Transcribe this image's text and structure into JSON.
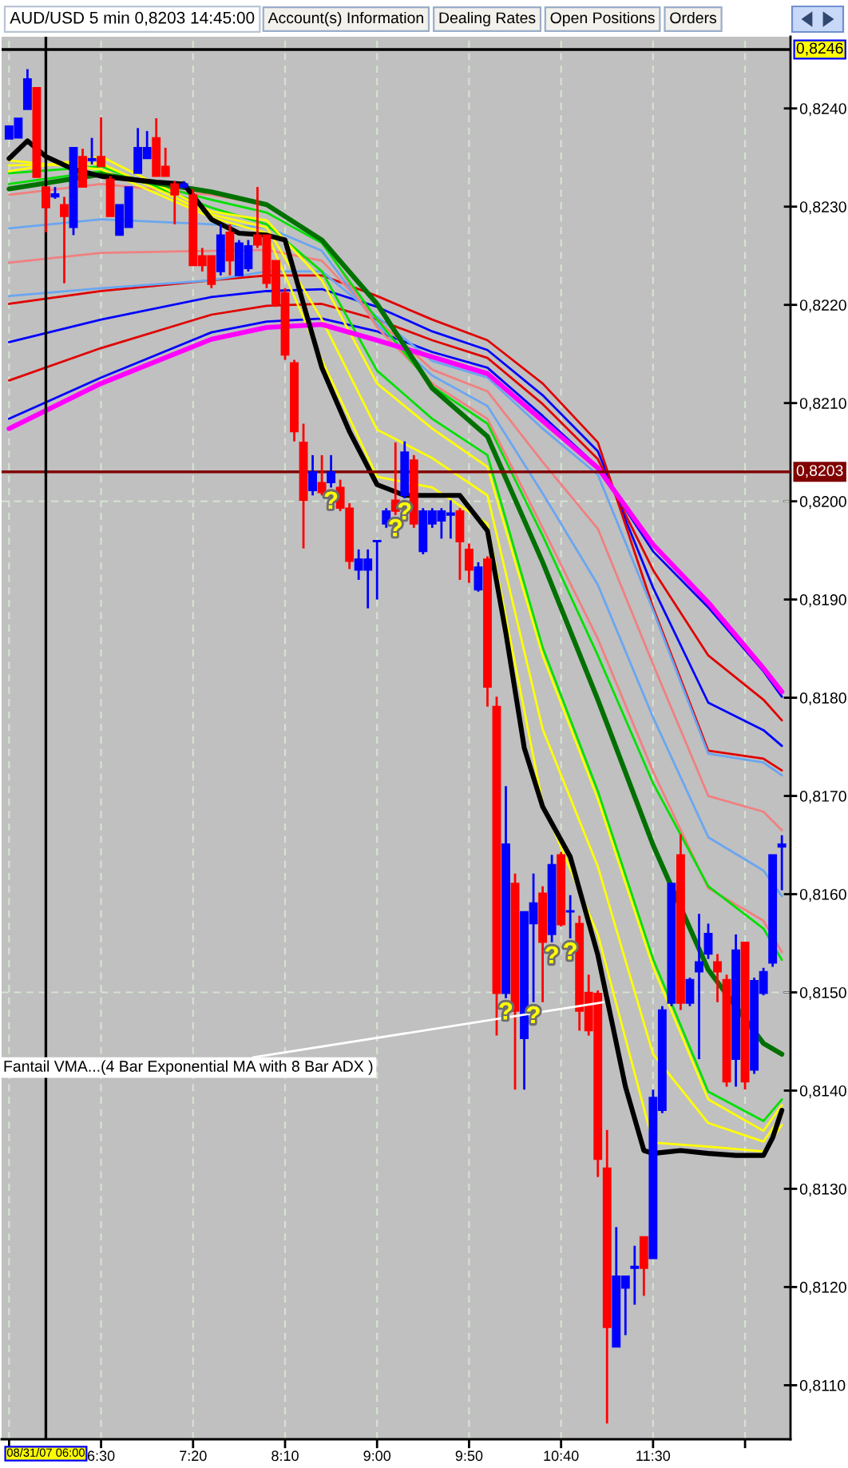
{
  "chart_data": {
    "type": "candlestick",
    "title": "AUD/USD 5 min 0,8203 14:45:00",
    "x": [
      5.6667,
      5.75,
      5.8333,
      5.9167,
      6.0,
      6.0833,
      6.1667,
      6.25,
      6.3333,
      6.4167,
      6.5,
      6.5833,
      6.6667,
      6.75,
      6.8333,
      6.9167,
      7.0,
      7.0833,
      7.1667,
      7.25,
      7.3333,
      7.4167,
      7.5,
      7.5833,
      7.6667,
      7.75,
      7.8333,
      7.9167,
      8.0,
      8.0833,
      8.1667,
      8.25,
      8.3333,
      8.4167,
      8.5,
      8.5833,
      8.6667,
      8.75,
      8.8333,
      8.9167,
      9.0,
      9.0833,
      9.1667,
      9.25,
      9.3333,
      9.4167,
      9.5,
      9.5833,
      9.6667,
      9.75,
      9.8333,
      9.9167,
      10.0,
      10.0833,
      10.1667,
      10.25,
      10.3333,
      10.4167,
      10.5,
      10.5833,
      10.6667,
      10.75,
      10.8333,
      10.9167,
      11.0,
      11.0833,
      11.1667,
      11.25,
      11.3333,
      11.4167,
      11.5,
      11.5833,
      11.6667,
      11.75,
      11.8333,
      11.9167,
      12.0,
      12.0833,
      12.1667,
      12.25,
      12.3333,
      12.4167,
      12.5,
      12.5833,
      12.6667
    ],
    "ohlc": [
      [
        0.82369,
        0.82382,
        0.82369,
        0.82382
      ],
      [
        0.8237,
        0.8239,
        0.8237,
        0.8239
      ],
      [
        0.82399,
        0.8244,
        0.82399,
        0.8243
      ],
      [
        0.82421,
        0.82421,
        0.8233,
        0.8233
      ],
      [
        0.8232,
        0.8232,
        0.82274,
        0.82299
      ],
      [
        0.8231,
        0.8232,
        0.82308,
        0.82313
      ],
      [
        0.82302,
        0.8231,
        0.82222,
        0.8229
      ],
      [
        0.82279,
        0.8236,
        0.82271,
        0.8236
      ],
      [
        0.82351,
        0.82359,
        0.8232,
        0.8232
      ],
      [
        0.82347,
        0.8237,
        0.82343,
        0.82349
      ],
      [
        0.82351,
        0.82391,
        0.82341,
        0.82341
      ],
      [
        0.82328,
        0.82331,
        0.8229,
        0.8229
      ],
      [
        0.82271,
        0.82302,
        0.82271,
        0.82302
      ],
      [
        0.82279,
        0.8232,
        0.82279,
        0.8232
      ],
      [
        0.82334,
        0.8238,
        0.82334,
        0.8236
      ],
      [
        0.82349,
        0.82377,
        0.82349,
        0.8236
      ],
      [
        0.8237,
        0.8239,
        0.82331,
        0.82331
      ],
      [
        0.82341,
        0.8236,
        0.82331,
        0.82331
      ],
      [
        0.82323,
        0.82326,
        0.82282,
        0.82312
      ],
      [
        0.8232,
        0.82326,
        0.82318,
        0.82323
      ],
      [
        0.82312,
        0.82318,
        0.8224,
        0.8224
      ],
      [
        0.8225,
        0.82258,
        0.82234,
        0.8224
      ],
      [
        0.8225,
        0.8225,
        0.82217,
        0.82221
      ],
      [
        0.82234,
        0.82282,
        0.8223,
        0.82271
      ],
      [
        0.82274,
        0.82282,
        0.8223,
        0.82245
      ],
      [
        0.8223,
        0.82266,
        0.82229,
        0.82263
      ],
      [
        0.82237,
        0.82266,
        0.82234,
        0.8226
      ],
      [
        0.82271,
        0.8232,
        0.82258,
        0.82261
      ],
      [
        0.82271,
        0.82271,
        0.82217,
        0.82222
      ],
      [
        0.82245,
        0.82245,
        0.82198,
        0.82201
      ],
      [
        0.82212,
        0.82217,
        0.82144,
        0.82149
      ],
      [
        0.82141,
        0.82144,
        0.82061,
        0.82071
      ],
      [
        0.8206,
        0.82079,
        0.81952,
        0.82001
      ],
      [
        0.82011,
        0.82047,
        0.82006,
        0.8203
      ],
      [
        0.82019,
        0.82047,
        0.82006,
        0.82009
      ],
      [
        0.82019,
        0.82047,
        0.82014,
        0.8203
      ],
      [
        0.82014,
        0.82022,
        0.8199,
        0.81993
      ],
      [
        0.81993,
        0.81998,
        0.81931,
        0.81939
      ],
      [
        0.8193,
        0.81951,
        0.8192,
        0.81941
      ],
      [
        0.8193,
        0.81951,
        0.81891,
        0.81941
      ],
      [
        0.81959,
        0.8196,
        0.819,
        0.8196
      ],
      [
        0.81977,
        0.81993,
        0.81973,
        0.8199
      ],
      [
        0.82001,
        0.8206,
        0.81986,
        0.8199
      ],
      [
        0.82006,
        0.82061,
        0.82003,
        0.8205
      ],
      [
        0.82042,
        0.82047,
        0.81973,
        0.81977
      ],
      [
        0.81949,
        0.81993,
        0.81946,
        0.8199
      ],
      [
        0.81977,
        0.81993,
        0.81973,
        0.8199
      ],
      [
        0.8198,
        0.81993,
        0.81962,
        0.8199
      ],
      [
        0.81986,
        0.82001,
        0.81962,
        0.81988
      ],
      [
        0.8199,
        0.81993,
        0.8192,
        0.81959
      ],
      [
        0.81951,
        0.81957,
        0.81917,
        0.8193
      ],
      [
        0.8191,
        0.81938,
        0.81908,
        0.81933
      ],
      [
        0.81941,
        0.81944,
        0.81791,
        0.81811
      ],
      [
        0.81791,
        0.81801,
        0.81456,
        0.81499
      ],
      [
        0.81499,
        0.8171,
        0.81494,
        0.81651
      ],
      [
        0.81611,
        0.81621,
        0.81401,
        0.81481
      ],
      [
        0.81453,
        0.81582,
        0.81401,
        0.81582
      ],
      [
        0.8157,
        0.81621,
        0.8149,
        0.81591
      ],
      [
        0.81601,
        0.81608,
        0.8149,
        0.81551
      ],
      [
        0.81559,
        0.8164,
        0.81551,
        0.8163
      ],
      [
        0.8164,
        0.81643,
        0.81567,
        0.81569
      ],
      [
        0.81582,
        0.81599,
        0.81555,
        0.81583
      ],
      [
        0.8157,
        0.81578,
        0.81461,
        0.81481
      ],
      [
        0.815,
        0.81518,
        0.81456,
        0.81461
      ],
      [
        0.81499,
        0.81502,
        0.81312,
        0.8133
      ],
      [
        0.81321,
        0.8136,
        0.81061,
        0.81159
      ],
      [
        0.81139,
        0.81261,
        0.81139,
        0.81211
      ],
      [
        0.81199,
        0.81211,
        0.81151,
        0.81211
      ],
      [
        0.81219,
        0.81242,
        0.81182,
        0.81221
      ],
      [
        0.81251,
        0.81251,
        0.81191,
        0.81219
      ],
      [
        0.81229,
        0.81401,
        0.81229,
        0.81393
      ],
      [
        0.8138,
        0.81486,
        0.81377,
        0.81482
      ],
      [
        0.81489,
        0.81611,
        0.81486,
        0.81611
      ],
      [
        0.8164,
        0.81661,
        0.81482,
        0.81489
      ],
      [
        0.81489,
        0.81515,
        0.81486,
        0.81513
      ],
      [
        0.81521,
        0.8158,
        0.81432,
        0.81531
      ],
      [
        0.81539,
        0.8157,
        0.81534,
        0.8156
      ],
      [
        0.81531,
        0.81539,
        0.8149,
        0.81521
      ],
      [
        0.81513,
        0.81518,
        0.81404,
        0.81409
      ],
      [
        0.81432,
        0.81559,
        0.81404,
        0.81543
      ],
      [
        0.81551,
        0.81551,
        0.81401,
        0.81409
      ],
      [
        0.81421,
        0.81515,
        0.81417,
        0.81512
      ],
      [
        0.81499,
        0.81525,
        0.81497,
        0.81521
      ],
      [
        0.8153,
        0.8164,
        0.81526,
        0.8164
      ],
      [
        0.81648,
        0.8166,
        0.81604,
        0.81651
      ]
    ],
    "colors": [
      "#0000ff",
      "#0000ff",
      "#0000ff",
      "#ff0000",
      "#ff0000",
      "#0000ff",
      "#ff0000",
      "#0000ff",
      "#ff0000",
      "#0000ff",
      "#ff0000",
      "#ff0000",
      "#0000ff",
      "#0000ff",
      "#0000ff",
      "#0000ff",
      "#ff0000",
      "#ff0000",
      "#ff0000",
      "#0000ff",
      "#ff0000",
      "#ff0000",
      "#ff0000",
      "#0000ff",
      "#ff0000",
      "#0000ff",
      "#0000ff",
      "#ff0000",
      "#ff0000",
      "#ff0000",
      "#ff0000",
      "#ff0000",
      "#ff0000",
      "#0000ff",
      "#ff0000",
      "#0000ff",
      "#ff0000",
      "#ff0000",
      "#0000ff",
      "#0000ff",
      "#0000ff",
      "#0000ff",
      "#ff0000",
      "#0000ff",
      "#ff0000",
      "#0000ff",
      "#0000ff",
      "#0000ff",
      "#0000ff",
      "#ff0000",
      "#ff0000",
      "#0000ff",
      "#ff0000",
      "#ff0000",
      "#0000ff",
      "#ff0000",
      "#0000ff",
      "#0000ff",
      "#ff0000",
      "#0000ff",
      "#ff0000",
      "#0000ff",
      "#ff0000",
      "#ff0000",
      "#ff0000",
      "#ff0000",
      "#0000ff",
      "#0000ff",
      "#0000ff",
      "#ff0000",
      "#0000ff",
      "#0000ff",
      "#0000ff",
      "#ff0000",
      "#0000ff",
      "#0000ff",
      "#0000ff",
      "#ff0000",
      "#ff0000",
      "#0000ff",
      "#ff0000",
      "#0000ff",
      "#0000ff",
      "#0000ff",
      "#0000ff"
    ],
    "series": [
      {
        "type": "line",
        "color": "#0000ff",
        "x": [
          5.6667,
          6.5,
          7.5,
          8.0,
          8.5,
          9.0,
          9.5,
          10.0,
          10.5,
          11.0,
          11.5,
          12.0,
          12.5,
          12.6667
        ],
        "values": [
          0.82084,
          0.82126,
          0.82172,
          0.82183,
          0.82186,
          0.82173,
          0.82152,
          0.82136,
          0.82087,
          0.82035,
          0.81949,
          0.81892,
          0.81827,
          0.81801
        ]
      },
      {
        "type": "line",
        "color": "#e00000",
        "x": [
          5.6667,
          6.5,
          7.5,
          8.0,
          8.5,
          9.0,
          9.5,
          10.0,
          10.5,
          11.0,
          11.5,
          12.0,
          12.5,
          12.6667
        ],
        "values": [
          0.82123,
          0.82156,
          0.8219,
          0.82199,
          0.82201,
          0.82185,
          0.82164,
          0.82146,
          0.82099,
          0.82043,
          0.8193,
          0.81843,
          0.81798,
          0.81777
        ]
      },
      {
        "type": "line",
        "color": "#0000ff",
        "x": [
          5.6667,
          6.5,
          7.5,
          8.0,
          8.5,
          9.0,
          9.5,
          10.0,
          10.5,
          11.0,
          11.5,
          12.0,
          12.5,
          12.6667
        ],
        "values": [
          0.82162,
          0.82185,
          0.82208,
          0.82214,
          0.82216,
          0.82198,
          0.82173,
          0.82154,
          0.82108,
          0.82051,
          0.81912,
          0.81795,
          0.81767,
          0.81751
        ]
      },
      {
        "type": "line",
        "color": "#e00000",
        "x": [
          5.6667,
          6.5,
          7.5,
          8.0,
          8.5,
          9.0,
          9.5,
          10.0,
          10.5,
          11.0,
          11.5,
          12.0,
          12.5,
          12.6667
        ],
        "values": [
          0.82201,
          0.82214,
          0.82225,
          0.8223,
          0.8223,
          0.82209,
          0.82185,
          0.82164,
          0.8212,
          0.8206,
          0.81892,
          0.81746,
          0.81738,
          0.81726
        ]
      },
      {
        "type": "line",
        "color": "#6aa6f0",
        "x": [
          5.6667,
          6.5,
          7.5,
          8.0,
          8.5,
          9.0,
          9.5,
          10.0,
          10.5,
          11.0,
          11.5,
          12.0,
          12.5,
          12.6667
        ],
        "values": [
          0.82209,
          0.82217,
          0.82225,
          0.82234,
          0.82234,
          0.82188,
          0.82143,
          0.82126,
          0.82074,
          0.82027,
          0.81889,
          0.81743,
          0.81734,
          0.81721
        ]
      },
      {
        "type": "line",
        "color": "#f08080",
        "x": [
          5.6667,
          6.5,
          7.5,
          8.0,
          8.5,
          9.0,
          9.5,
          10.0,
          10.5,
          11.0,
          11.5,
          12.0,
          12.5,
          12.6667
        ],
        "values": [
          0.82243,
          0.82253,
          0.82255,
          0.82256,
          0.82245,
          0.82185,
          0.82134,
          0.82112,
          0.8204,
          0.81972,
          0.81834,
          0.817,
          0.81684,
          0.81665
        ]
      },
      {
        "type": "line",
        "color": "#6aa6f0",
        "x": [
          5.6667,
          6.5,
          7.5,
          8.0,
          8.5,
          9.0,
          9.5,
          10.0,
          10.5,
          11.0,
          11.5,
          12.0,
          12.5,
          12.6667
        ],
        "values": [
          0.82278,
          0.82287,
          0.82282,
          0.82279,
          0.82255,
          0.8218,
          0.82128,
          0.82097,
          0.82008,
          0.81915,
          0.8178,
          0.81658,
          0.81624,
          0.81598
        ]
      },
      {
        "type": "line",
        "color": "#f08080",
        "x": [
          5.6667,
          6.5,
          7.5,
          8.0,
          8.5,
          9.0,
          9.5,
          10.0,
          10.5,
          11.0,
          11.5,
          12.0,
          12.5,
          12.6667
        ],
        "values": [
          0.82312,
          0.82323,
          0.82312,
          0.82302,
          0.82266,
          0.82177,
          0.8212,
          0.82084,
          0.81973,
          0.8186,
          0.81725,
          0.81606,
          0.81573,
          0.81541
        ]
      },
      {
        "type": "line",
        "color": "#00e000",
        "x": [
          5.6667,
          6.5,
          7.5,
          8.0,
          8.5,
          9.0,
          9.5,
          10.0,
          10.5,
          11.0,
          11.5,
          12.0,
          12.5,
          12.6667
        ],
        "values": [
          0.82323,
          0.82336,
          0.82307,
          0.82294,
          0.82263,
          0.82185,
          0.82117,
          0.82079,
          0.81965,
          0.81843,
          0.81713,
          0.81608,
          0.81565,
          0.81533
        ]
      },
      {
        "type": "line",
        "color": "#00e000",
        "x": [
          5.6667,
          6.5,
          7.5,
          8.0,
          8.5,
          9.0,
          9.5,
          10.0,
          10.5,
          11.0,
          11.5,
          12.0,
          12.5,
          12.6667
        ],
        "values": [
          0.82334,
          0.82341,
          0.82299,
          0.82282,
          0.82234,
          0.82133,
          0.82084,
          0.82047,
          0.81851,
          0.81705,
          0.81534,
          0.81399,
          0.81369,
          0.81391
        ]
      },
      {
        "type": "line",
        "color": "#ffff00",
        "x": [
          5.6667,
          6.5,
          7.5,
          8.0,
          8.5,
          9.0,
          9.5,
          10.0,
          10.5,
          11.0,
          11.5,
          12.0,
          12.5,
          12.6667
        ],
        "values": [
          0.82336,
          0.82351,
          0.82295,
          0.82286,
          0.82225,
          0.8212,
          0.82074,
          0.82035,
          0.81843,
          0.81697,
          0.81526,
          0.81391,
          0.81359,
          0.81385
        ]
      },
      {
        "type": "line",
        "color": "#ffff00",
        "x": [
          5.6667,
          6.5,
          7.5,
          8.0,
          8.5,
          9.0,
          9.5,
          10.0,
          10.5,
          11.0,
          11.5,
          12.0,
          12.5,
          12.6667
        ],
        "values": [
          0.82342,
          0.82344,
          0.82292,
          0.82279,
          0.82185,
          0.82073,
          0.82044,
          0.82006,
          0.81768,
          0.81628,
          0.81437,
          0.81367,
          0.81348,
          0.81375
        ]
      },
      {
        "type": "line",
        "color": "#ffff00",
        "x": [
          5.6667,
          6.5,
          7.5,
          8.0,
          8.5,
          9.0,
          9.5,
          10.0,
          10.5,
          11.0,
          11.5,
          12.0,
          12.5,
          12.6667
        ],
        "values": [
          0.82347,
          0.82338,
          0.82289,
          0.82273,
          0.82144,
          0.82025,
          0.82014,
          0.81977,
          0.81692,
          0.81559,
          0.81347,
          0.81343,
          0.81338,
          0.81365
        ]
      },
      {
        "type": "line",
        "color": "#ff00ff",
        "x": [
          5.6667,
          6.5,
          7.5,
          8.0,
          8.5,
          9.0,
          9.5,
          10.0,
          10.5,
          11.0,
          11.5,
          12.0,
          12.5,
          12.6667
        ],
        "values": [
          0.82074,
          0.8212,
          0.82165,
          0.82177,
          0.8218,
          0.82164,
          0.82147,
          0.8213,
          0.82082,
          0.82034,
          0.81956,
          0.81897,
          0.8183,
          0.81806
        ]
      },
      {
        "type": "line",
        "color": "#007000",
        "x": [
          5.6667,
          6.5,
          7.5,
          8.0,
          8.5,
          9.0,
          9.5,
          10.0,
          10.5,
          11.0,
          11.5,
          12.0,
          12.5,
          12.6667
        ],
        "values": [
          0.82318,
          0.82333,
          0.82315,
          0.82302,
          0.82266,
          0.82201,
          0.82115,
          0.82066,
          0.81938,
          0.81798,
          0.8165,
          0.81523,
          0.81448,
          0.81437
        ]
      },
      {
        "type": "line",
        "color": "#000000",
        "x": [
          5.6667,
          5.8333,
          6.0,
          6.25,
          6.5,
          7.0,
          7.25,
          7.5,
          7.75,
          8.0,
          8.1667,
          8.3333,
          8.5,
          8.75,
          9.0,
          9.25,
          9.5,
          9.75,
          10.0,
          10.1667,
          10.3333,
          10.5,
          10.75,
          11.0,
          11.25,
          11.4167,
          11.5,
          11.75,
          12.0,
          12.25,
          12.5,
          12.5833,
          12.6667
        ],
        "values": [
          0.82349,
          0.82367,
          0.82351,
          0.82338,
          0.82331,
          0.82325,
          0.82323,
          0.82287,
          0.82273,
          0.82271,
          0.82266,
          0.82201,
          0.82136,
          0.82071,
          0.82017,
          0.82006,
          0.82006,
          0.82006,
          0.8197,
          0.81866,
          0.81749,
          0.81689,
          0.81638,
          0.81538,
          0.81404,
          0.81339,
          0.81336,
          0.81339,
          0.81336,
          0.81334,
          0.81334,
          0.81352,
          0.8138
        ]
      }
    ],
    "xlim": [
      5.599,
      12.745
    ],
    "ylim": [
      0.81045,
      0.82473
    ],
    "xticks": [
      {
        "value": 5.6667,
        "label": null
      },
      {
        "value": 6.5,
        "label": "6:30"
      },
      {
        "value": 7.3333,
        "label": "7:20"
      },
      {
        "value": 8.1667,
        "label": "8:10"
      },
      {
        "value": 9.0,
        "label": "9:00"
      },
      {
        "value": 9.8333,
        "label": "9:50"
      },
      {
        "value": 10.6667,
        "label": "10:40"
      },
      {
        "value": 11.5,
        "label": "11:30"
      },
      {
        "value": 12.3333,
        "label": null
      }
    ],
    "yticks": [
      {
        "value": 0.811,
        "label": "0,8110"
      },
      {
        "value": 0.812,
        "label": "0,8120"
      },
      {
        "value": 0.813,
        "label": "0,8130"
      },
      {
        "value": 0.814,
        "label": "0,8140"
      },
      {
        "value": 0.815,
        "label": "0,8150"
      },
      {
        "value": 0.816,
        "label": "0,8160"
      },
      {
        "value": 0.817,
        "label": "0,8170"
      },
      {
        "value": 0.818,
        "label": "0,8180"
      },
      {
        "value": 0.819,
        "label": "0,8190"
      },
      {
        "value": 0.82,
        "label": "0,8200"
      },
      {
        "value": 0.821,
        "label": "0,8210"
      },
      {
        "value": 0.822,
        "label": "0,8220"
      },
      {
        "value": 0.823,
        "label": "0,8230"
      },
      {
        "value": 0.824,
        "label": "0,8240"
      }
    ],
    "grid": "x",
    "ref_lines": [
      {
        "axis": "y",
        "value": 0.815,
        "color": "#d4e2d0",
        "line_style": "dashed"
      },
      {
        "axis": "y",
        "value": 0.82,
        "color": "#d4e2d0",
        "line_style": "dashed"
      },
      {
        "axis": "y",
        "value": 0.8246,
        "label": "0,8246",
        "color": "#000000"
      },
      {
        "axis": "y",
        "value": 0.8203,
        "label": "0,8203",
        "color": "#800000"
      },
      {
        "axis": "x",
        "value": 6.0,
        "label": "08/31/07 06:00",
        "color": "#000000"
      }
    ],
    "annotations": [
      "Account(s) Information",
      "Dealing Rates",
      "Open Positions",
      "Orders",
      {
        "text": "Fantail VMA...(4 Bar Exponential MA with 8 Bar ADX )",
        "x": 11.05,
        "y": 0.8149
      },
      {
        "text": "?",
        "x": 8.5833,
        "y": 0.82014
      },
      {
        "text": "?",
        "x": 9.1667,
        "y": 0.81986
      },
      {
        "text": "?",
        "x": 9.25,
        "y": 0.82003
      },
      {
        "text": "?",
        "x": 10.1667,
        "y": 0.81494
      },
      {
        "text": "?",
        "x": 10.4167,
        "y": 0.8149
      },
      {
        "text": "?",
        "x": 10.5833,
        "y": 0.81551
      },
      {
        "text": "?",
        "x": 10.75,
        "y": 0.81555
      }
    ]
  }
}
